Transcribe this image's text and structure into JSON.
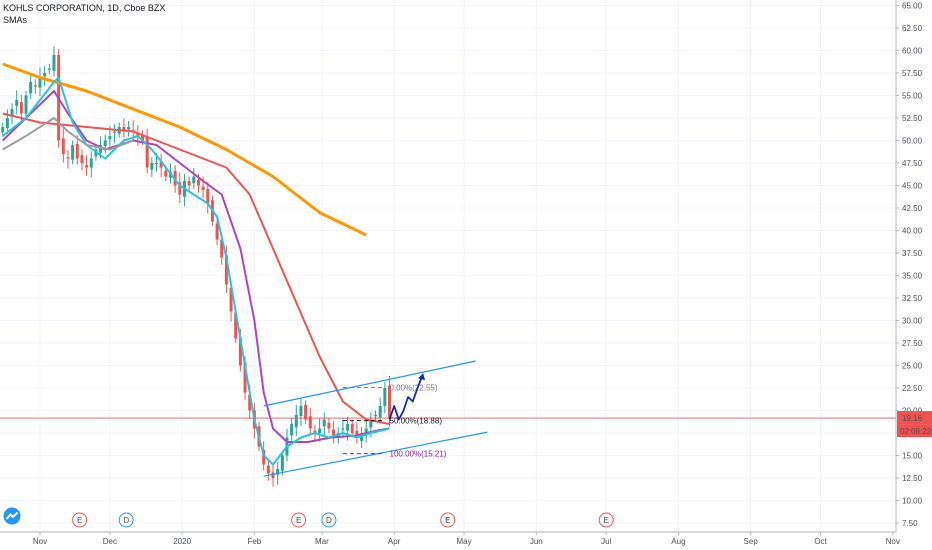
{
  "header": {
    "title": "KOHLS CORPORATION, 1D, Cboe BZX",
    "indicator": "SMAs"
  },
  "price_badge": {
    "price": "19.16",
    "countdown": "02:08:22"
  },
  "chart_data": {
    "type": "line",
    "x_ticks": [
      {
        "label": "Nov",
        "d": 0
      },
      {
        "label": "Dec",
        "d": 30
      },
      {
        "label": "2020",
        "d": 61
      },
      {
        "label": "Feb",
        "d": 92
      },
      {
        "label": "Mar",
        "d": 121
      },
      {
        "label": "Apr",
        "d": 152
      },
      {
        "label": "May",
        "d": 182
      },
      {
        "label": "Jun",
        "d": 213
      },
      {
        "label": "Jul",
        "d": 243
      },
      {
        "label": "Aug",
        "d": 274
      },
      {
        "label": "Sep",
        "d": 305
      },
      {
        "label": "Oct",
        "d": 335
      },
      {
        "label": "Nov",
        "d": 366
      }
    ],
    "y_ticks": [
      "7.50",
      "10.00",
      "12.50",
      "15.00",
      "17.50",
      "20.00",
      "22.50",
      "25.00",
      "27.50",
      "30.00",
      "32.50",
      "35.00",
      "37.50",
      "40.00",
      "42.50",
      "45.00",
      "47.50",
      "50.00",
      "52.50",
      "55.00",
      "57.50",
      "60.00",
      "62.50",
      "65.00"
    ],
    "ylim": [
      6.5,
      65.5
    ],
    "last_price": 19.16,
    "close_series": [
      [
        -16,
        51.5
      ],
      [
        -14,
        52.5
      ],
      [
        -12,
        53.5
      ],
      [
        -10,
        54.5
      ],
      [
        -8,
        53
      ],
      [
        -6,
        55
      ],
      [
        -4,
        56.5
      ],
      [
        -2,
        56
      ],
      [
        0,
        57
      ],
      [
        2,
        57.5
      ],
      [
        4,
        58
      ],
      [
        6,
        59.5
      ],
      [
        8,
        50
      ],
      [
        10,
        48.5
      ],
      [
        12,
        48
      ],
      [
        14,
        49.5
      ],
      [
        16,
        48
      ],
      [
        18,
        47.5
      ],
      [
        20,
        47
      ],
      [
        22,
        48
      ],
      [
        24,
        49
      ],
      [
        26,
        49.5
      ],
      [
        28,
        50
      ],
      [
        30,
        50.5
      ],
      [
        32,
        51
      ],
      [
        34,
        51.5
      ],
      [
        36,
        51
      ],
      [
        38,
        51.5
      ],
      [
        40,
        51
      ],
      [
        42,
        50.5
      ],
      [
        44,
        50
      ],
      [
        46,
        47
      ],
      [
        48,
        47.5
      ],
      [
        50,
        47.5
      ],
      [
        52,
        47
      ],
      [
        54,
        46
      ],
      [
        56,
        46.5
      ],
      [
        58,
        45
      ],
      [
        60,
        44
      ],
      [
        62,
        45.5
      ],
      [
        64,
        45
      ],
      [
        66,
        46
      ],
      [
        68,
        45
      ],
      [
        70,
        44.5
      ],
      [
        72,
        43
      ],
      [
        74,
        41
      ],
      [
        76,
        39
      ],
      [
        78,
        37
      ],
      [
        80,
        34
      ],
      [
        82,
        31
      ],
      [
        84,
        28
      ],
      [
        86,
        25
      ],
      [
        88,
        22
      ],
      [
        90,
        20
      ],
      [
        92,
        18
      ],
      [
        94,
        16
      ],
      [
        96,
        14
      ],
      [
        98,
        13
      ],
      [
        100,
        12.5
      ],
      [
        102,
        13.5
      ],
      [
        104,
        15
      ],
      [
        106,
        17
      ],
      [
        108,
        18.5
      ],
      [
        110,
        19.5
      ],
      [
        112,
        20.5
      ],
      [
        114,
        19
      ],
      [
        116,
        18
      ],
      [
        118,
        17.5
      ],
      [
        120,
        18
      ],
      [
        122,
        19
      ],
      [
        124,
        18
      ],
      [
        126,
        17
      ],
      [
        128,
        17.5
      ],
      [
        130,
        18
      ],
      [
        132,
        18.5
      ],
      [
        134,
        17.5
      ],
      [
        136,
        17
      ],
      [
        138,
        17.5
      ],
      [
        140,
        18
      ],
      [
        142,
        19
      ],
      [
        144,
        19.5
      ],
      [
        146,
        20.5
      ],
      [
        148,
        22.5
      ],
      [
        150,
        19.16
      ]
    ],
    "series": [
      {
        "color": "#ff9800",
        "values": [
          [
            -16,
            58.5
          ],
          [
            0,
            57
          ],
          [
            20,
            55.5
          ],
          [
            40,
            53.5
          ],
          [
            60,
            51.5
          ],
          [
            80,
            49
          ],
          [
            100,
            46
          ],
          [
            120,
            42
          ],
          [
            140,
            39.5
          ]
        ]
      },
      {
        "color": "#ef5350",
        "values": [
          [
            -16,
            53
          ],
          [
            0,
            52
          ],
          [
            20,
            51.5
          ],
          [
            40,
            51
          ],
          [
            60,
            49
          ],
          [
            70,
            48
          ],
          [
            80,
            47
          ],
          [
            90,
            44
          ],
          [
            100,
            38
          ],
          [
            110,
            32
          ],
          [
            120,
            26
          ],
          [
            130,
            21
          ],
          [
            140,
            19
          ],
          [
            150,
            18.5
          ]
        ]
      },
      {
        "color": "#ab47bc",
        "values": [
          [
            -16,
            50
          ],
          [
            0,
            54
          ],
          [
            6,
            55.5
          ],
          [
            12,
            53
          ],
          [
            20,
            50
          ],
          [
            28,
            49
          ],
          [
            40,
            50
          ],
          [
            50,
            49.5
          ],
          [
            60,
            47.5
          ],
          [
            70,
            45.5
          ],
          [
            78,
            44
          ],
          [
            86,
            38
          ],
          [
            92,
            30
          ],
          [
            96,
            22
          ],
          [
            100,
            18
          ],
          [
            106,
            16.5
          ],
          [
            115,
            16.5
          ],
          [
            125,
            17
          ],
          [
            135,
            17.2
          ],
          [
            145,
            17.8
          ],
          [
            150,
            18
          ]
        ]
      },
      {
        "color": "#26c6da",
        "values": [
          [
            -16,
            50.5
          ],
          [
            -6,
            52.5
          ],
          [
            6,
            56.5
          ],
          [
            8,
            57
          ],
          [
            14,
            52
          ],
          [
            20,
            49.5
          ],
          [
            28,
            48
          ],
          [
            36,
            50
          ],
          [
            42,
            50.5
          ],
          [
            48,
            49
          ],
          [
            54,
            47
          ],
          [
            60,
            45
          ],
          [
            66,
            44
          ],
          [
            72,
            43
          ],
          [
            76,
            41.5
          ],
          [
            80,
            37
          ],
          [
            84,
            31
          ],
          [
            88,
            25
          ],
          [
            92,
            19
          ],
          [
            96,
            15
          ],
          [
            100,
            14
          ],
          [
            106,
            16
          ],
          [
            112,
            17
          ],
          [
            118,
            17.5
          ],
          [
            124,
            17
          ],
          [
            130,
            17.5
          ],
          [
            136,
            17
          ],
          [
            142,
            17.5
          ],
          [
            150,
            18
          ]
        ]
      },
      {
        "color": "#9e9e9e",
        "values": [
          [
            -16,
            49
          ],
          [
            -6,
            50.5
          ],
          [
            6,
            52.5
          ],
          [
            12,
            51
          ],
          [
            20,
            49.5
          ],
          [
            30,
            49
          ],
          [
            40,
            50
          ]
        ]
      }
    ],
    "channel": {
      "upper": [
        [
          96,
          20.5
        ],
        [
          187,
          25.5
        ]
      ],
      "lower": [
        [
          96,
          12.7
        ],
        [
          192,
          17.6
        ]
      ]
    },
    "fib_levels": [
      {
        "label": "0.00%(22.55)",
        "value": 22.55,
        "color": "#787b86"
      },
      {
        "label": "50.00%(18.88)",
        "value": 18.88,
        "color": "#131722"
      },
      {
        "label": "100.00%(15.21)",
        "value": 15.21,
        "color": "#7b1fa2"
      }
    ],
    "projection": [
      [
        150,
        19
      ],
      [
        152,
        20.5
      ],
      [
        154,
        19
      ],
      [
        156,
        20
      ],
      [
        158,
        21.5
      ],
      [
        160,
        21
      ],
      [
        162,
        22.5
      ],
      [
        164,
        23.8
      ]
    ],
    "events": [
      {
        "label": "E",
        "d": 17,
        "color": "#ef5350"
      },
      {
        "label": "D",
        "d": 37,
        "color": "#2196f3"
      },
      {
        "label": "E",
        "d": 111,
        "color": "#ef5350"
      },
      {
        "label": "D",
        "d": 124,
        "color": "#2196f3"
      },
      {
        "label": "E",
        "d": 175,
        "color": "#ef5350"
      },
      {
        "label": "E",
        "d": 243,
        "color": "#ef5350"
      }
    ],
    "grid": true,
    "up_color": "#26a69a",
    "down_color": "#ef5350"
  }
}
